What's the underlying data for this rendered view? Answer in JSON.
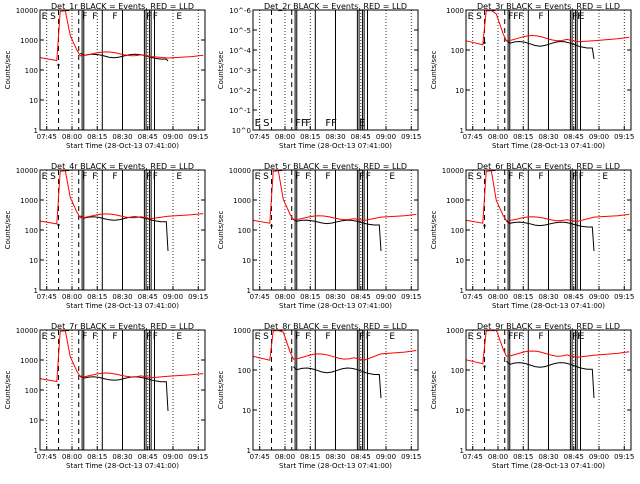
{
  "figure": {
    "xlabel_prefix": "Start Time",
    "start_time_label": "Start Time (28-Oct-13 07:41:00)",
    "ylabel": "Counts/sec",
    "x_ticks": [
      "07:45",
      "08:00",
      "08:15",
      "08:30",
      "08:45",
      "09:00",
      "09:15"
    ],
    "colors": {
      "events": "#000000",
      "lld": "#ff0000"
    }
  },
  "chart_data": [
    {
      "type": "line",
      "title": "Det_1r BLACK = Events, RED = LLD",
      "xlabel": "Start Time (28-Oct-13 07:41:00)",
      "ylabel": "Counts/sec",
      "ylog": true,
      "ylim": [
        1,
        10000
      ],
      "y_ticks": [
        "1",
        "10",
        "100",
        "1000",
        "10000"
      ],
      "xlim_minutes_from_0741": [
        0,
        98
      ],
      "markers": [
        "E",
        "S",
        "F",
        "F",
        "F",
        "F",
        "F",
        "E"
      ],
      "series": [
        {
          "name": "BLACK = Events",
          "values_start": 160,
          "plateau": 330,
          "end": 200
        },
        {
          "name": "RED = LLD",
          "values_start": 260,
          "plateau": 350,
          "end": 280
        }
      ]
    },
    {
      "type": "line",
      "title": "Det_2r BLACK = Events, RED = LLD",
      "xlabel": "Start Time (28-Oct-13 07:41:00)",
      "ylabel": "Counts/sec",
      "ylog": true,
      "ylim": [
        1,
        1e-06
      ],
      "y_ticks": [
        "10^0",
        "10^-1",
        "10^-2",
        "10^-3",
        "10^-4",
        "10^-5",
        "10^-6"
      ],
      "xlim_minutes_from_0741": [
        0,
        98
      ],
      "markers": [
        "E",
        "S",
        "FF",
        "F",
        "FF",
        "E"
      ],
      "series": []
    },
    {
      "type": "line",
      "title": "Det_3r BLACK = Events, RED = LLD",
      "xlabel": "Start Time (28-Oct-13 07:41:00)",
      "ylabel": "Counts/sec",
      "ylog": true,
      "ylim": [
        1,
        1000
      ],
      "y_ticks": [
        "1",
        "10",
        "100",
        "1000"
      ],
      "xlim_minutes_from_0741": [
        0,
        98
      ],
      "markers": [
        "E",
        "S",
        "FF",
        "F",
        "F",
        "FF",
        "E"
      ],
      "series": [
        {
          "name": "BLACK = Events",
          "values_start": 160,
          "plateau": 160,
          "end": 60
        },
        {
          "name": "RED = LLD",
          "values_start": 170,
          "plateau": 200,
          "end": 190
        }
      ]
    },
    {
      "type": "line",
      "title": "Det_4r BLACK = Events, RED = LLD",
      "xlabel": "Start Time (28-Oct-13 07:41:00)",
      "ylabel": "Counts/sec",
      "ylog": true,
      "ylim": [
        1,
        10000
      ],
      "y_ticks": [
        "1",
        "10",
        "100",
        "1000",
        "10000"
      ],
      "xlim_minutes_from_0741": [
        0,
        98
      ],
      "markers": [
        "E",
        "S",
        "F",
        "F",
        "F",
        "F",
        "F",
        "E"
      ],
      "series": [
        {
          "name": "BLACK = Events",
          "values_start": 160,
          "plateau": 270,
          "end": 20
        },
        {
          "name": "RED = LLD",
          "values_start": 200,
          "plateau": 300,
          "end": 320
        }
      ]
    },
    {
      "type": "line",
      "title": "Det_5r BLACK = Events, RED = LLD",
      "xlabel": "Start Time (28-Oct-13 07:41:00)",
      "ylabel": "Counts/sec",
      "ylog": true,
      "ylim": [
        1,
        10000
      ],
      "y_ticks": [
        "1",
        "10",
        "100",
        "1000",
        "10000"
      ],
      "xlim_minutes_from_0741": [
        0,
        98
      ],
      "markers": [
        "E",
        "S",
        "F",
        "F",
        "F",
        "F",
        "F",
        "E"
      ],
      "series": [
        {
          "name": "BLACK = Events",
          "values_start": 150,
          "plateau": 210,
          "end": 20
        },
        {
          "name": "RED = LLD",
          "values_start": 210,
          "plateau": 260,
          "end": 300
        }
      ]
    },
    {
      "type": "line",
      "title": "Det_6r BLACK = Events, RED = LLD",
      "xlabel": "Start Time (28-Oct-13 07:41:00)",
      "ylabel": "Counts/sec",
      "ylog": true,
      "ylim": [
        1,
        10000
      ],
      "y_ticks": [
        "1",
        "10",
        "100",
        "1000",
        "10000"
      ],
      "xlim_minutes_from_0741": [
        0,
        98
      ],
      "markers": [
        "E",
        "S",
        "F",
        "F",
        "F",
        "F",
        "F",
        "E"
      ],
      "series": [
        {
          "name": "BLACK = Events",
          "values_start": 150,
          "plateau": 180,
          "end": 20
        },
        {
          "name": "RED = LLD",
          "values_start": 210,
          "plateau": 240,
          "end": 300
        }
      ]
    },
    {
      "type": "line",
      "title": "Det_7r BLACK = Events, RED = LLD",
      "xlabel": "Start Time (28-Oct-13 07:41:00)",
      "ylabel": "Counts/sec",
      "ylog": true,
      "ylim": [
        1,
        10000
      ],
      "y_ticks": [
        "1",
        "10",
        "100",
        "1000",
        "10000"
      ],
      "xlim_minutes_from_0741": [
        0,
        98
      ],
      "markers": [
        "E",
        "S",
        "F",
        "F",
        "F",
        "F",
        "F",
        "E"
      ],
      "series": [
        {
          "name": "BLACK = Events",
          "values_start": 160,
          "plateau": 270,
          "end": 20
        },
        {
          "name": "RED = LLD",
          "values_start": 240,
          "plateau": 320,
          "end": 320
        }
      ]
    },
    {
      "type": "line",
      "title": "Det_8r BLACK = Events, RED = LLD",
      "xlabel": "Start Time (28-Oct-13 07:41:00)",
      "ylabel": "Counts/sec",
      "ylog": true,
      "ylim": [
        1,
        1000
      ],
      "y_ticks": [
        "1",
        "10",
        "100",
        "1000"
      ],
      "xlim_minutes_from_0741": [
        0,
        98
      ],
      "markers": [
        "E",
        "S",
        "F",
        "F",
        "F",
        "F",
        "F",
        "E"
      ],
      "series": [
        {
          "name": "BLACK = Events",
          "values_start": 110,
          "plateau": 110,
          "end": 20
        },
        {
          "name": "RED = LLD",
          "values_start": 220,
          "plateau": 220,
          "end": 280
        }
      ]
    },
    {
      "type": "line",
      "title": "Det_9r BLACK = Events, RED = LLD",
      "xlabel": "Start Time (28-Oct-13 07:41:00)",
      "ylabel": "Counts/sec",
      "ylog": true,
      "ylim": [
        1,
        1000
      ],
      "y_ticks": [
        "1",
        "10",
        "100",
        "1000"
      ],
      "xlim_minutes_from_0741": [
        0,
        98
      ],
      "markers": [
        "E",
        "S",
        "FF",
        "F",
        "F",
        "FF",
        "E"
      ],
      "series": [
        {
          "name": "BLACK = Events",
          "values_start": 130,
          "plateau": 150,
          "end": 20
        },
        {
          "name": "RED = LLD",
          "values_start": 180,
          "plateau": 260,
          "end": 260
        }
      ]
    }
  ]
}
